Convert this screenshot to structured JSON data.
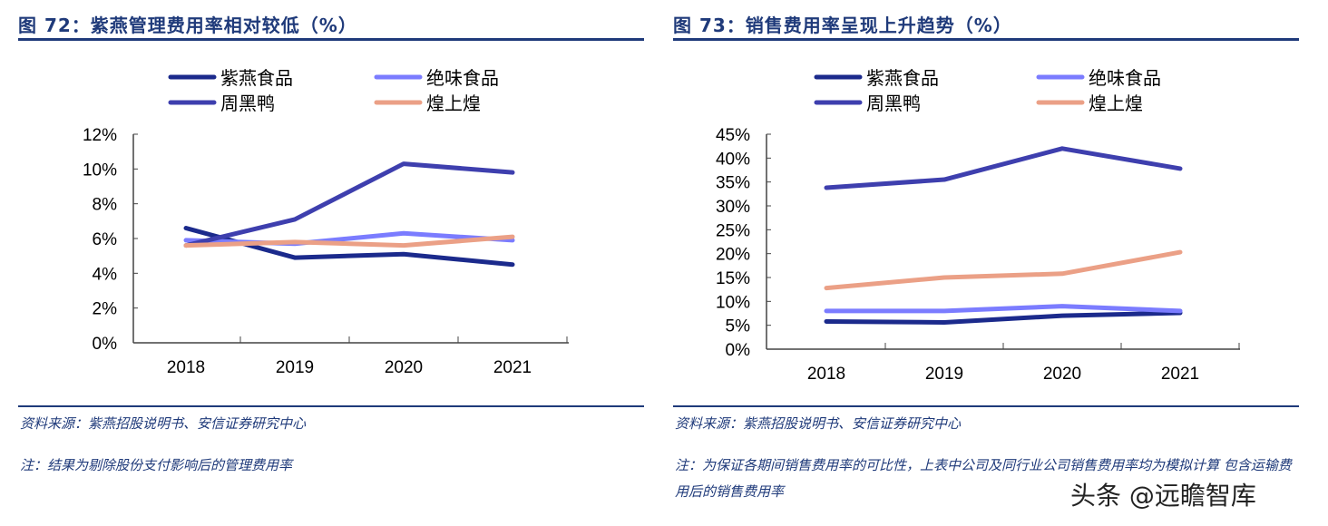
{
  "chart_data": [
    {
      "type": "line",
      "title": "图 72：紫燕管理费用率相对较低（%）",
      "source": "资料来源：紫燕招股说明书、安信证券研究中心",
      "note": "注：结果为剔除股份支付影响后的管理费用率",
      "categories": [
        "2018",
        "2019",
        "2020",
        "2021"
      ],
      "ylim": [
        0,
        12
      ],
      "yticks": [
        "0%",
        "2%",
        "4%",
        "6%",
        "8%",
        "10%",
        "12%"
      ],
      "grid": false,
      "legend": "top",
      "series": [
        {
          "name": "紫燕食品",
          "color": "#1b2a8c",
          "values": [
            6.6,
            4.9,
            5.1,
            4.5
          ]
        },
        {
          "name": "绝味食品",
          "color": "#7b7cff",
          "values": [
            5.9,
            5.7,
            6.3,
            5.9
          ]
        },
        {
          "name": "周黑鸭",
          "color": "#3e3fae",
          "values": [
            5.6,
            7.1,
            10.3,
            9.8
          ]
        },
        {
          "name": "煌上煌",
          "color": "#eba086",
          "values": [
            5.6,
            5.8,
            5.6,
            6.1
          ]
        }
      ]
    },
    {
      "type": "line",
      "title": "图 73：销售费用率呈现上升趋势（%）",
      "source": "资料来源：紫燕招股说明书、安信证券研究中心",
      "note": "注：为保证各期间销售费用率的可比性，上表中公司及同行业公司销售费用率均为模拟计算 包含运输费用后的销售费用率",
      "categories": [
        "2018",
        "2019",
        "2020",
        "2021"
      ],
      "ylim": [
        0,
        45
      ],
      "yticks": [
        "0%",
        "5%",
        "10%",
        "15%",
        "20%",
        "25%",
        "30%",
        "35%",
        "40%",
        "45%"
      ],
      "grid": false,
      "legend": "top",
      "series": [
        {
          "name": "紫燕食品",
          "color": "#1b2a8c",
          "values": [
            5.8,
            5.6,
            7.0,
            7.6
          ]
        },
        {
          "name": "绝味食品",
          "color": "#7b7cff",
          "values": [
            8.0,
            8.0,
            9.0,
            8.0
          ]
        },
        {
          "name": "周黑鸭",
          "color": "#3e3fae",
          "values": [
            33.8,
            35.5,
            42.0,
            37.8
          ]
        },
        {
          "name": "煌上煌",
          "color": "#eba086",
          "values": [
            12.8,
            15.0,
            15.8,
            20.3
          ]
        }
      ]
    }
  ],
  "watermark": "头条 @远瞻智库"
}
